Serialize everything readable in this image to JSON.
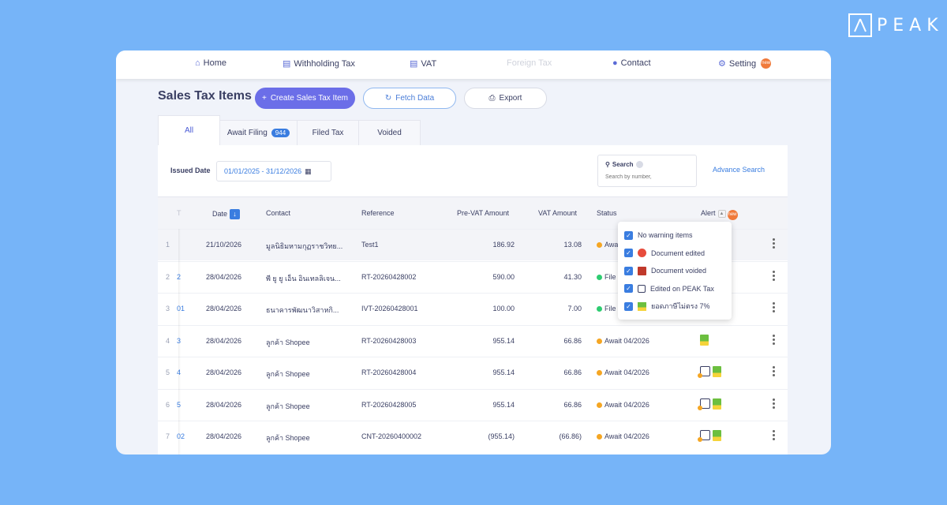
{
  "brand": {
    "name": "PEAK",
    "mark_icon": "peak-logo-icon"
  },
  "nav": {
    "home": "Home",
    "withholding": "Withholding Tax",
    "vat": "VAT",
    "foreign": "Foreign Tax",
    "contact": "Contact",
    "setting": "Setting",
    "setting_badge": "new"
  },
  "page": {
    "title": "Sales Tax Items"
  },
  "toolbar": {
    "create": "Create Sales Tax Item",
    "fetch": "Fetch Data",
    "export": "Export"
  },
  "tabs": {
    "all": "All",
    "await": "Await Filing",
    "await_count": "944",
    "filed": "Filed Tax",
    "voided": "Voided"
  },
  "filter": {
    "issued_label": "Issued Date",
    "date_range": "01/01/2025 - 31/12/2026",
    "search_label": "Search",
    "search_placeholder": "Search by number,",
    "advance": "Advance Search"
  },
  "table": {
    "headers": {
      "num": "T",
      "date": "Date",
      "contact": "Contact",
      "reference": "Reference",
      "prevat": "Pre-VAT Amount",
      "vat": "VAT Amount",
      "status": "Status",
      "alert": "Alert",
      "alert_badge": "new"
    },
    "rows": [
      {
        "idx": "1",
        "doc": "",
        "date": "21/10/2026",
        "contact": "มูลนิธิมหามกุฏราชวิทย...",
        "reference": "Test1",
        "prevat": "186.92",
        "vat": "13.08",
        "status": "Awai"
      },
      {
        "idx": "2",
        "doc": "2",
        "date": "28/04/2026",
        "contact": "พี ยู ยู เอ็น อินเทลลิเจน...",
        "reference": "RT-20260428002",
        "prevat": "590.00",
        "vat": "41.30",
        "status": "File"
      },
      {
        "idx": "3",
        "doc": "01",
        "date": "28/04/2026",
        "contact": "ธนาคารพัฒนาวิสาหกิ...",
        "reference": "IVT-20260428001",
        "prevat": "100.00",
        "vat": "7.00",
        "status": "File"
      },
      {
        "idx": "4",
        "doc": "3",
        "date": "28/04/2026",
        "contact": "ลูกค้า Shopee",
        "reference": "RT-20260428003",
        "prevat": "955.14",
        "vat": "66.86",
        "status": "Await 04/2026"
      },
      {
        "idx": "5",
        "doc": "4",
        "date": "28/04/2026",
        "contact": "ลูกค้า Shopee",
        "reference": "RT-20260428004",
        "prevat": "955.14",
        "vat": "66.86",
        "status": "Await 04/2026"
      },
      {
        "idx": "6",
        "doc": "5",
        "date": "28/04/2026",
        "contact": "ลูกค้า Shopee",
        "reference": "RT-20260428005",
        "prevat": "955.14",
        "vat": "66.86",
        "status": "Await 04/2026"
      },
      {
        "idx": "7",
        "doc": "02",
        "date": "28/04/2026",
        "contact": "ลูกค้า Shopee",
        "reference": "CNT-20260400002",
        "prevat": "(955.14)",
        "vat": "(66.86)",
        "status": "Await 04/2026"
      }
    ]
  },
  "alert_filter": {
    "items": [
      {
        "label": "No warning items",
        "checked": true
      },
      {
        "label": "Document edited",
        "checked": true
      },
      {
        "label": "Document voided",
        "checked": true
      },
      {
        "label": "Edited on PEAK Tax",
        "checked": true
      },
      {
        "label": "ยอดภาษีไม่ตรง 7%",
        "checked": true
      }
    ]
  },
  "colors": {
    "await": "#f5a623",
    "filed": "#2ecc71",
    "accent": "#6b6ee8",
    "link": "#3a7de0"
  }
}
